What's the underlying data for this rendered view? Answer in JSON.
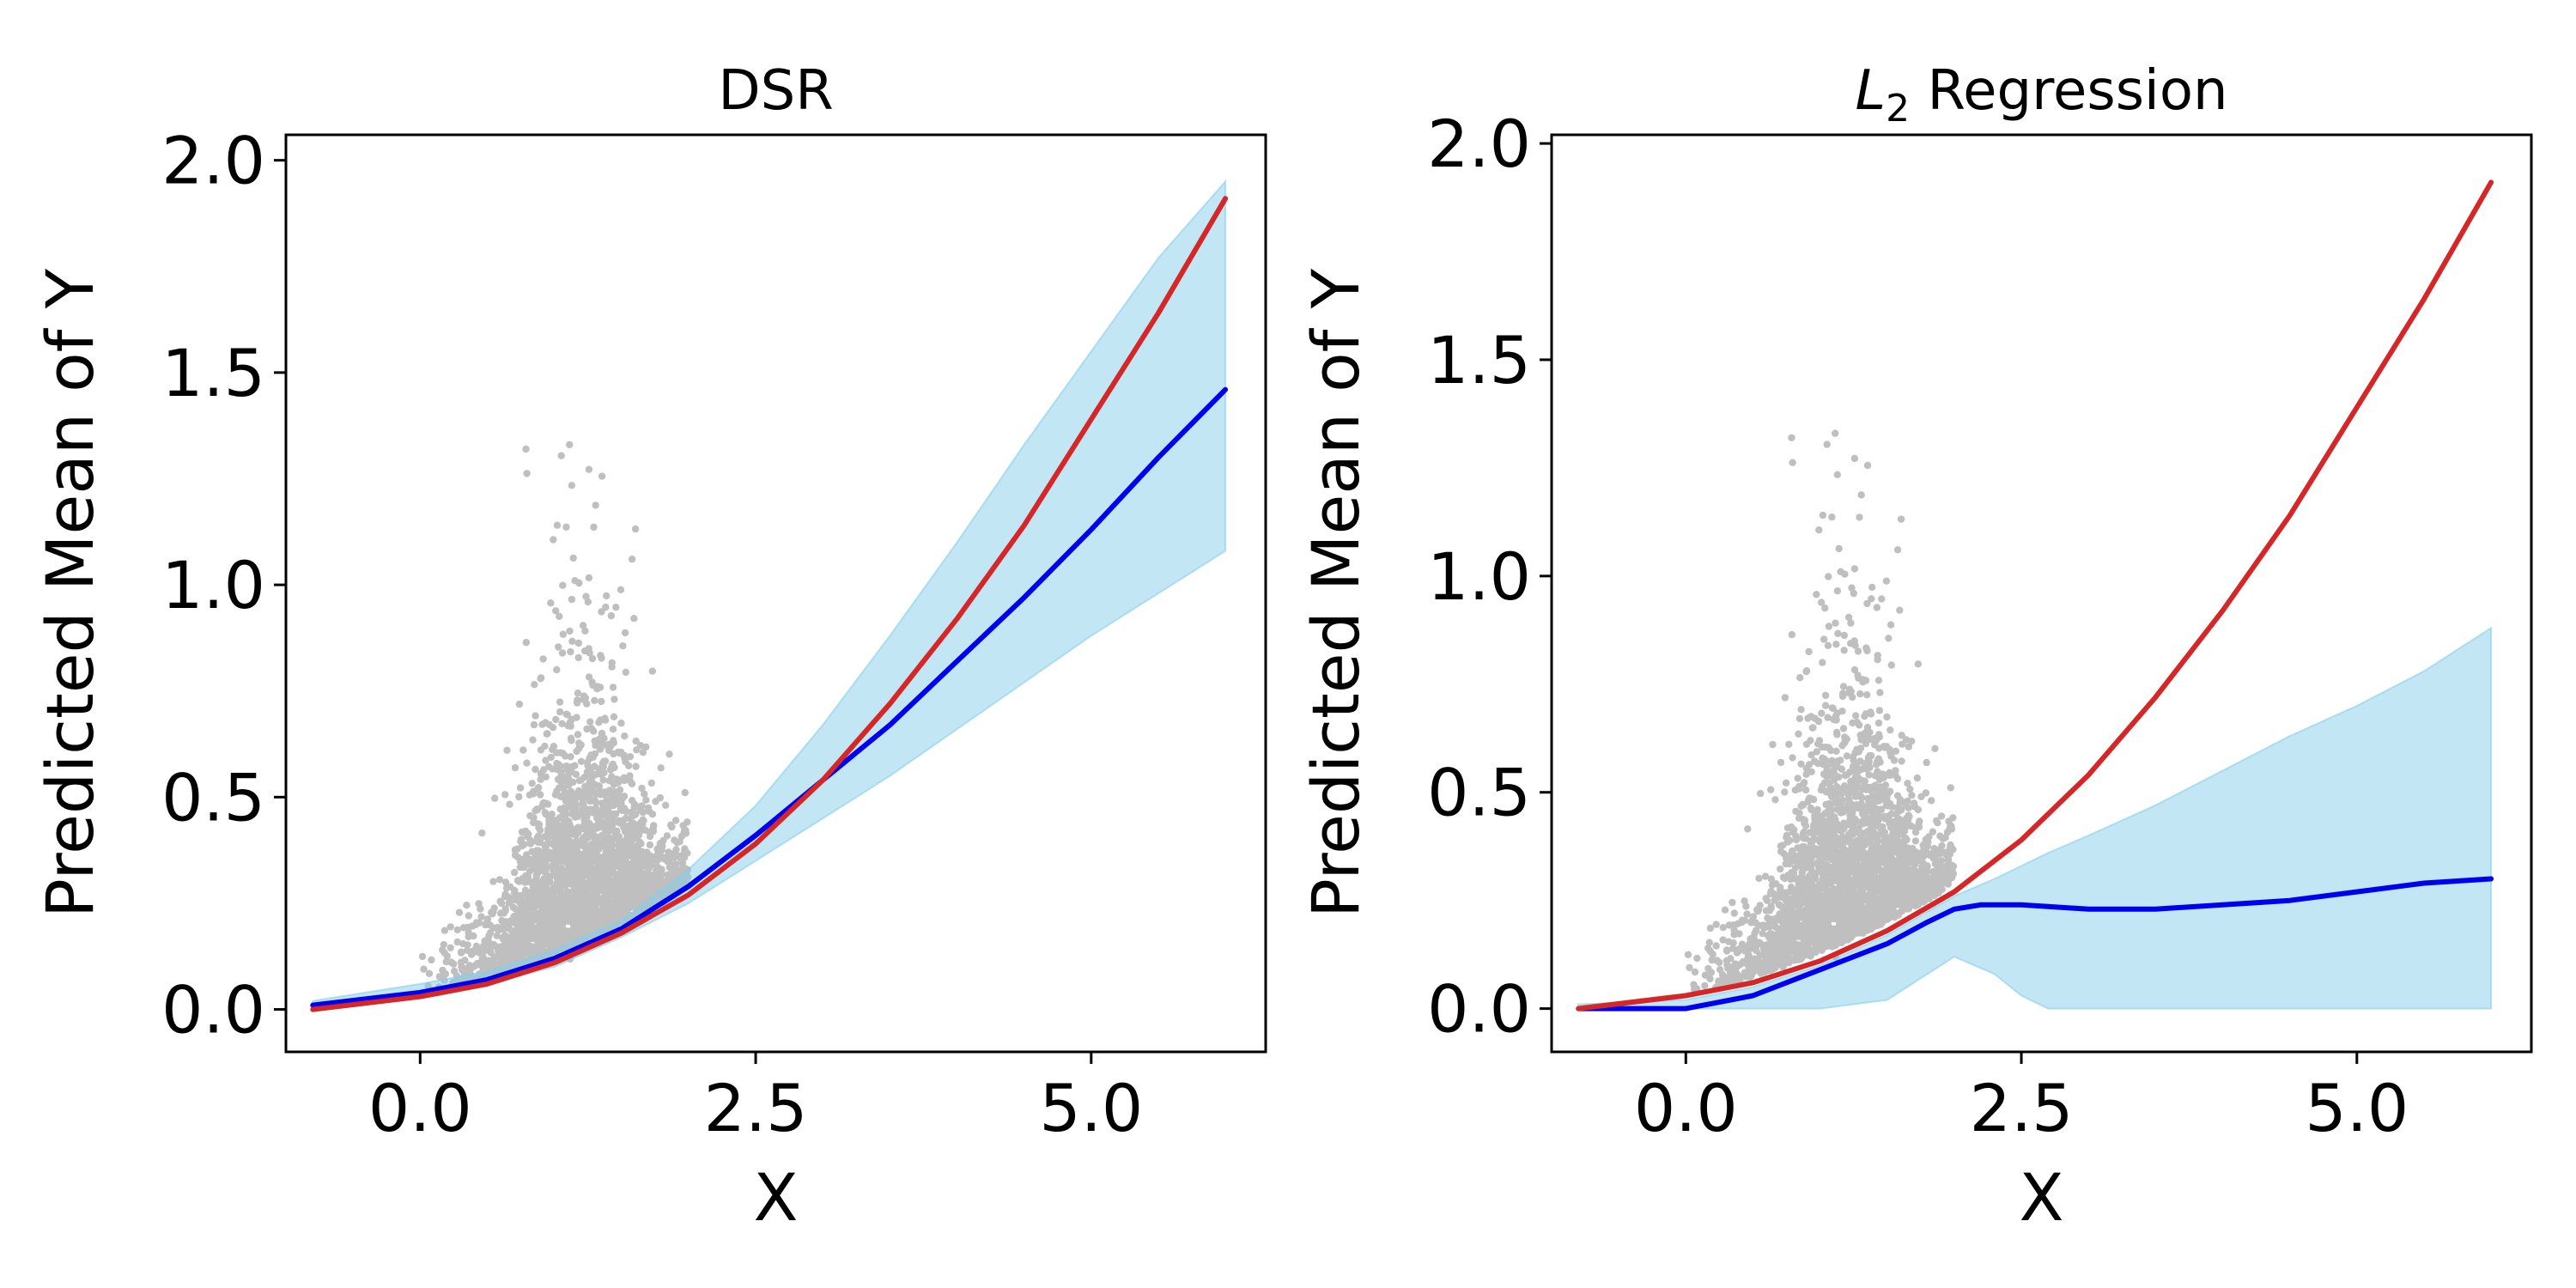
{
  "colors": {
    "band": "#87ceeb",
    "band_opacity": 0.5,
    "predicted": "#0000ee",
    "true": "#d62728",
    "scatter": "#bfbfbf",
    "axes": "#000000"
  },
  "chart_data": [
    {
      "type": "line",
      "title": "DSR",
      "xlabel": "X",
      "ylabel": "Predicted Mean of Y",
      "xlim": [
        -1.0,
        6.3
      ],
      "ylim": [
        -0.1,
        2.06
      ],
      "xticks": [
        "0.0",
        "2.5",
        "5.0"
      ],
      "xtick_values": [
        0.0,
        2.5,
        5.0
      ],
      "yticks": [
        "0.0",
        "0.5",
        "1.0",
        "1.5",
        "2.0"
      ],
      "ytick_values": [
        0.0,
        0.5,
        1.0,
        1.5,
        2.0
      ],
      "grid": false,
      "legend": false,
      "series": [
        {
          "kind": "band",
          "color": "band",
          "x": [
            -0.8,
            0.0,
            0.5,
            1.0,
            1.5,
            2.0,
            2.5,
            3.0,
            3.5,
            4.0,
            4.5,
            5.0,
            5.5,
            6.0
          ],
          "lower": [
            0.0,
            0.03,
            0.06,
            0.1,
            0.17,
            0.25,
            0.35,
            0.45,
            0.55,
            0.66,
            0.77,
            0.88,
            0.98,
            1.08
          ],
          "upper": [
            0.02,
            0.06,
            0.09,
            0.14,
            0.21,
            0.33,
            0.48,
            0.67,
            0.88,
            1.1,
            1.33,
            1.55,
            1.77,
            1.95
          ]
        },
        {
          "kind": "line",
          "color": "predicted",
          "x": [
            -0.8,
            0.0,
            0.5,
            1.0,
            1.5,
            2.0,
            2.5,
            3.0,
            3.5,
            4.0,
            4.5,
            5.0,
            5.5,
            6.0
          ],
          "y": [
            0.01,
            0.04,
            0.07,
            0.12,
            0.19,
            0.29,
            0.41,
            0.54,
            0.67,
            0.82,
            0.97,
            1.13,
            1.3,
            1.46
          ]
        },
        {
          "kind": "line",
          "color": "true",
          "x": [
            -0.8,
            0.0,
            0.5,
            1.0,
            1.5,
            2.0,
            2.5,
            3.0,
            3.5,
            4.0,
            4.5,
            5.0,
            5.5,
            6.0
          ],
          "y": [
            0.0,
            0.03,
            0.06,
            0.11,
            0.18,
            0.27,
            0.39,
            0.54,
            0.72,
            0.92,
            1.14,
            1.39,
            1.64,
            1.91
          ]
        }
      ]
    },
    {
      "type": "line",
      "title": "L",
      "title_subscript": "2",
      "title_suffix": " Regression",
      "xlabel": "X",
      "ylabel": "Predicted Mean of Y",
      "xlim": [
        -1.0,
        6.3
      ],
      "ylim": [
        -0.1,
        2.02
      ],
      "xticks": [
        "0.0",
        "2.5",
        "5.0"
      ],
      "xtick_values": [
        0.0,
        2.5,
        5.0
      ],
      "yticks": [
        "0.0",
        "0.5",
        "1.0",
        "1.5",
        "2.0"
      ],
      "ytick_values": [
        0.0,
        0.5,
        1.0,
        1.5,
        2.0
      ],
      "grid": false,
      "legend": false,
      "series": [
        {
          "kind": "band",
          "color": "band",
          "x": [
            -0.8,
            0.0,
            0.5,
            1.0,
            1.5,
            2.0,
            2.3,
            2.5,
            2.7,
            3.0,
            3.5,
            4.0,
            4.5,
            5.0,
            5.5,
            6.0
          ],
          "lower": [
            0.0,
            0.0,
            0.0,
            0.0,
            0.02,
            0.12,
            0.08,
            0.03,
            0.0,
            0.0,
            0.0,
            0.0,
            0.0,
            0.0,
            0.0,
            0.0
          ],
          "upper": [
            0.01,
            0.02,
            0.05,
            0.1,
            0.17,
            0.26,
            0.3,
            0.33,
            0.36,
            0.4,
            0.47,
            0.55,
            0.63,
            0.7,
            0.78,
            0.88
          ]
        },
        {
          "kind": "line",
          "color": "predicted",
          "x": [
            -0.8,
            0.0,
            0.5,
            1.0,
            1.5,
            1.8,
            2.0,
            2.2,
            2.5,
            3.0,
            3.5,
            4.0,
            4.5,
            5.0,
            5.5,
            6.0
          ],
          "y": [
            0.0,
            0.0,
            0.03,
            0.09,
            0.15,
            0.2,
            0.23,
            0.24,
            0.24,
            0.23,
            0.23,
            0.24,
            0.25,
            0.27,
            0.29,
            0.3
          ]
        },
        {
          "kind": "line",
          "color": "true",
          "x": [
            -0.8,
            0.0,
            0.5,
            1.0,
            1.5,
            2.0,
            2.5,
            3.0,
            3.5,
            4.0,
            4.5,
            5.0,
            5.5,
            6.0
          ],
          "y": [
            0.0,
            0.03,
            0.06,
            0.11,
            0.18,
            0.27,
            0.39,
            0.54,
            0.72,
            0.92,
            1.14,
            1.39,
            1.64,
            1.91
          ]
        }
      ]
    }
  ],
  "scatter": {
    "x_range": [
      0.0,
      2.0
    ],
    "x_center": 1.2,
    "y_max": 1.4
  }
}
